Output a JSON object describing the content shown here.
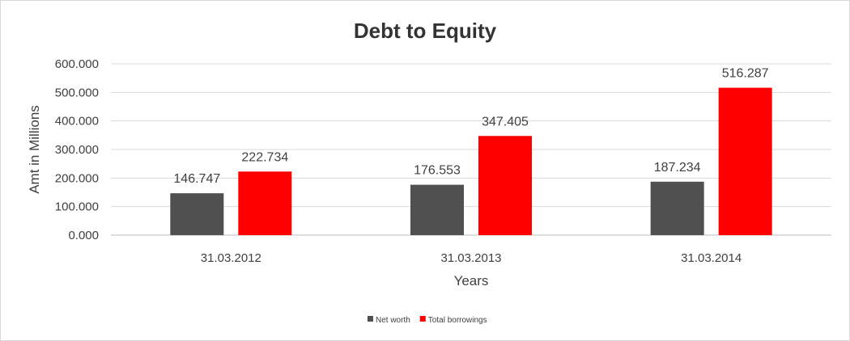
{
  "chart_data": {
    "type": "bar",
    "title": "Debt to Equity",
    "xlabel": "Years",
    "ylabel": "Amt in Millions",
    "categories": [
      "31.03.2012",
      "31.03.2013",
      "31.03.2014"
    ],
    "series": [
      {
        "name": "Net worth",
        "values": [
          146.747,
          176.553,
          187.234
        ],
        "color": "#505050"
      },
      {
        "name": "Total borrowings",
        "values": [
          222.734,
          347.405,
          516.287
        ],
        "color": "#ff0000"
      }
    ],
    "ylim": [
      0,
      600
    ],
    "yticks": [
      0,
      100,
      200,
      300,
      400,
      500,
      600
    ],
    "ytick_labels": [
      "0.000",
      "100.000",
      "200.000",
      "300.000",
      "400.000",
      "500.000",
      "600.000"
    ],
    "data_labels": [
      [
        "146.747",
        "176.553",
        "187.234"
      ],
      [
        "222.734",
        "347.405",
        "516.287"
      ]
    ],
    "grid": true,
    "legend": "bottom"
  }
}
